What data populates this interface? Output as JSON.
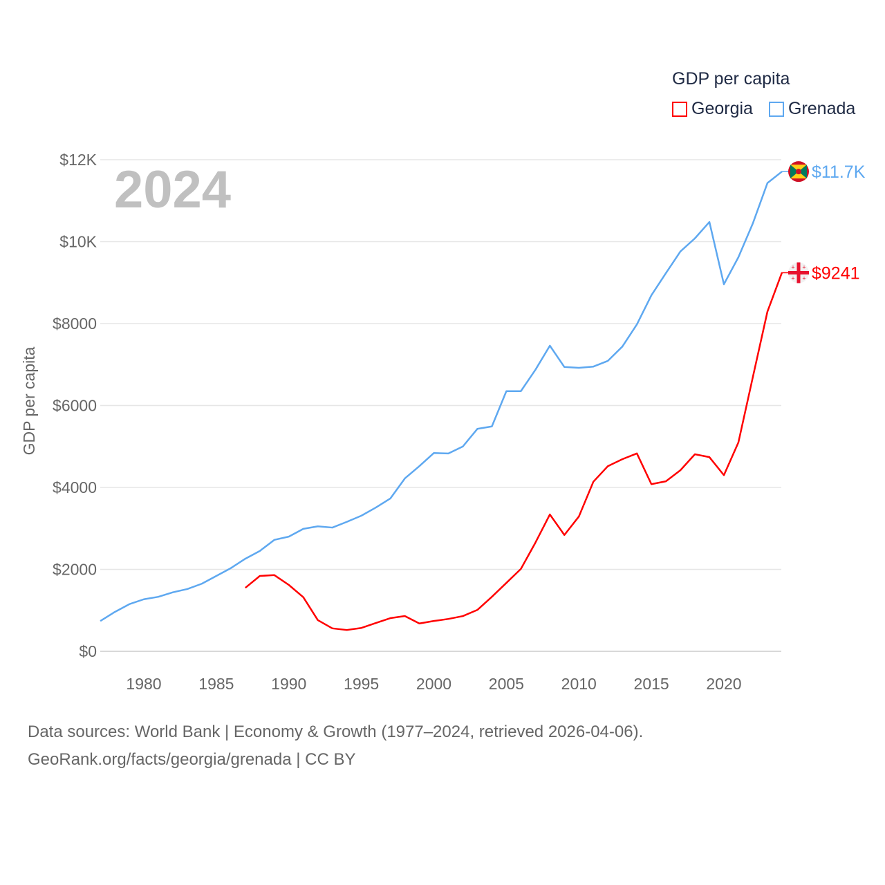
{
  "chart_data": {
    "type": "line",
    "title": "GDP per capita",
    "ylabel": "GDP per capita",
    "xlabel": "",
    "year_label": "2024",
    "xlim": [
      1977,
      2024
    ],
    "ylim": [
      0,
      12000
    ],
    "x_ticks": [
      "1980",
      "1985",
      "1990",
      "1995",
      "2000",
      "2005",
      "2010",
      "2015",
      "2020"
    ],
    "y_ticks": [
      {
        "value": 0,
        "label": "$0"
      },
      {
        "value": 2000,
        "label": "$2000"
      },
      {
        "value": 4000,
        "label": "$4000"
      },
      {
        "value": 6000,
        "label": "$6000"
      },
      {
        "value": 8000,
        "label": "$8000"
      },
      {
        "value": 10000,
        "label": "$10K"
      },
      {
        "value": 12000,
        "label": "$12K"
      }
    ],
    "grid": true,
    "legend_placement": "top-right",
    "series": [
      {
        "name": "Georgia",
        "color": "#ff0000",
        "end_label": "$9241",
        "start_year": 1987,
        "values": [
          1550,
          1840,
          1860,
          1620,
          1320,
          760,
          560,
          520,
          570,
          690,
          810,
          860,
          680,
          740,
          790,
          860,
          1010,
          1330,
          1670,
          2010,
          2650,
          3340,
          2840,
          3290,
          4140,
          4520,
          4690,
          4830,
          4080,
          4150,
          4420,
          4810,
          4740,
          4300,
          5100,
          6700,
          8290,
          9241
        ]
      },
      {
        "name": "Grenada",
        "color": "#5ea8f0",
        "end_label": "$11.7K",
        "start_year": 1977,
        "values": [
          740,
          960,
          1150,
          1270,
          1330,
          1440,
          1520,
          1650,
          1840,
          2030,
          2260,
          2450,
          2720,
          2800,
          2990,
          3050,
          3020,
          3160,
          3310,
          3510,
          3730,
          4220,
          4520,
          4840,
          4830,
          5000,
          5430,
          5490,
          6350,
          6350,
          6870,
          7460,
          6940,
          6920,
          6950,
          7090,
          7440,
          7980,
          8690,
          9230,
          9760,
          10080,
          10480,
          8960,
          9620,
          10450,
          11430,
          11710
        ]
      }
    ]
  },
  "footer": {
    "line1": "Data sources: World Bank | Economy & Growth (1977–2024, retrieved 2026-04-06).",
    "line2": "GeoRank.org/facts/georgia/grenada | CC BY"
  }
}
